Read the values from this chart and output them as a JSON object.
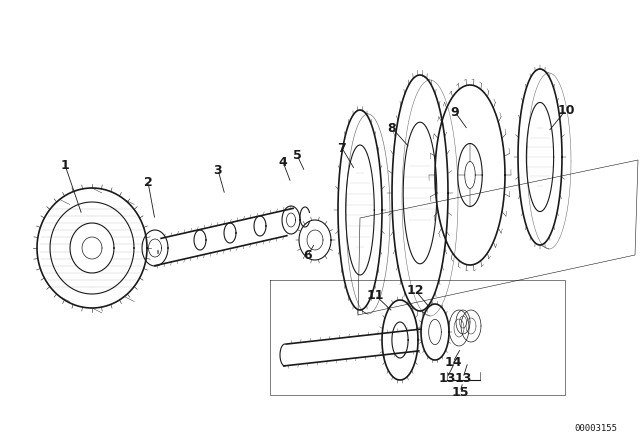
{
  "bg_color": "#ffffff",
  "line_color": "#1a1a1a",
  "fig_width": 6.4,
  "fig_height": 4.48,
  "dpi": 100,
  "catalog_number": "00003155"
}
